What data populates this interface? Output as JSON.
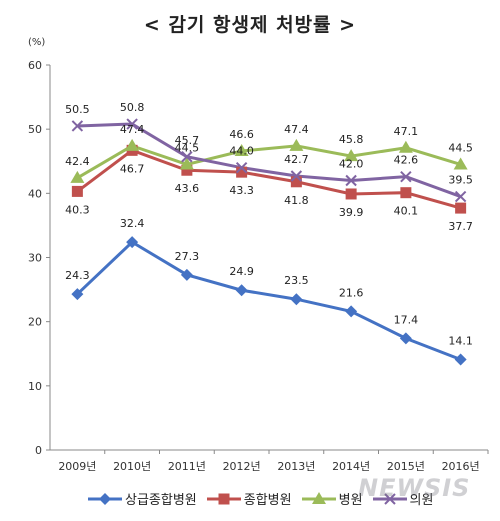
{
  "chart_data": {
    "type": "line",
    "title": "< 감기 항생제 처방률 >",
    "ylabel": "(%)",
    "ylim": [
      0,
      60
    ],
    "yticks": [
      0,
      10,
      20,
      30,
      40,
      50,
      60
    ],
    "categories": [
      "2009년",
      "2010년",
      "2011년",
      "2012년",
      "2013년",
      "2014년",
      "2015년",
      "2016년"
    ],
    "grid": false,
    "legend_position": "bottom",
    "series": [
      {
        "name": "상급종합병원",
        "color": "#4472C4",
        "marker": "diamond",
        "values": [
          24.3,
          32.4,
          27.3,
          24.9,
          23.5,
          21.6,
          17.4,
          14.1
        ]
      },
      {
        "name": "종합병원",
        "color": "#C0504D",
        "marker": "square",
        "values": [
          40.3,
          46.7,
          43.6,
          43.3,
          41.8,
          39.9,
          40.1,
          37.7
        ]
      },
      {
        "name": "병원",
        "color": "#9BBB59",
        "marker": "triangle",
        "values": [
          42.4,
          47.4,
          44.5,
          46.6,
          47.4,
          45.8,
          47.1,
          44.5
        ]
      },
      {
        "name": "의원",
        "color": "#8064A2",
        "marker": "x",
        "values": [
          50.5,
          50.8,
          45.7,
          44.0,
          42.7,
          42.0,
          42.6,
          39.5
        ]
      }
    ]
  },
  "watermark": "NEWSIS"
}
